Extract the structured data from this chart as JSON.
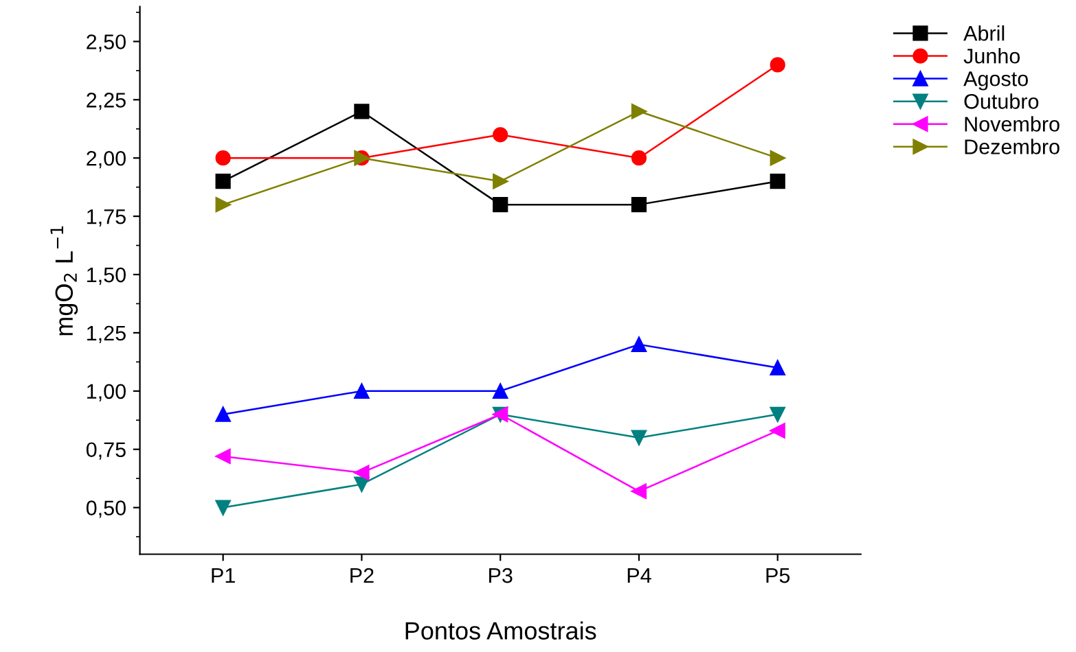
{
  "chart_data": {
    "type": "line",
    "xlabel": "Pontos Amostrais",
    "ylabel": "mgO$_{2}$ L$^{−1}$",
    "categories": [
      "P1",
      "P2",
      "P3",
      "P4",
      "P5"
    ],
    "series": [
      {
        "name": "Abril",
        "color": "#000000",
        "marker": "square",
        "values": [
          1.9,
          2.2,
          1.8,
          1.8,
          1.9
        ]
      },
      {
        "name": "Junho",
        "color": "#ff0000",
        "marker": "circle",
        "values": [
          2.0,
          2.0,
          2.1,
          2.0,
          2.4
        ]
      },
      {
        "name": "Agosto",
        "color": "#0000ff",
        "marker": "triangle",
        "values": [
          0.9,
          1.0,
          1.0,
          1.2,
          1.1
        ]
      },
      {
        "name": "Outubro",
        "color": "#008080",
        "marker": "triangle_down",
        "values": [
          0.5,
          0.6,
          0.9,
          0.8,
          0.9
        ]
      },
      {
        "name": "Novembro",
        "color": "#ff00ff",
        "marker": "triangle_left",
        "values": [
          0.72,
          0.65,
          0.9,
          0.57,
          0.83
        ]
      },
      {
        "name": "Dezembro",
        "color": "#808000",
        "marker": "triangle_right",
        "values": [
          1.8,
          2.0,
          1.9,
          2.2,
          2.0
        ]
      }
    ],
    "ylim": [
      0.3,
      2.65
    ],
    "yticks": [
      {
        "value": 0.5,
        "label": "0,50"
      },
      {
        "value": 0.75,
        "label": "0,75"
      },
      {
        "value": 1.0,
        "label": "1,00"
      },
      {
        "value": 1.25,
        "label": "1,25"
      },
      {
        "value": 1.5,
        "label": "1,50"
      },
      {
        "value": 1.75,
        "label": "1,75"
      },
      {
        "value": 2.0,
        "label": "2,00"
      },
      {
        "value": 2.25,
        "label": "2,25"
      },
      {
        "value": 2.5,
        "label": "2,50"
      }
    ],
    "grid": false,
    "legend": "right",
    "line_style": "solid"
  }
}
